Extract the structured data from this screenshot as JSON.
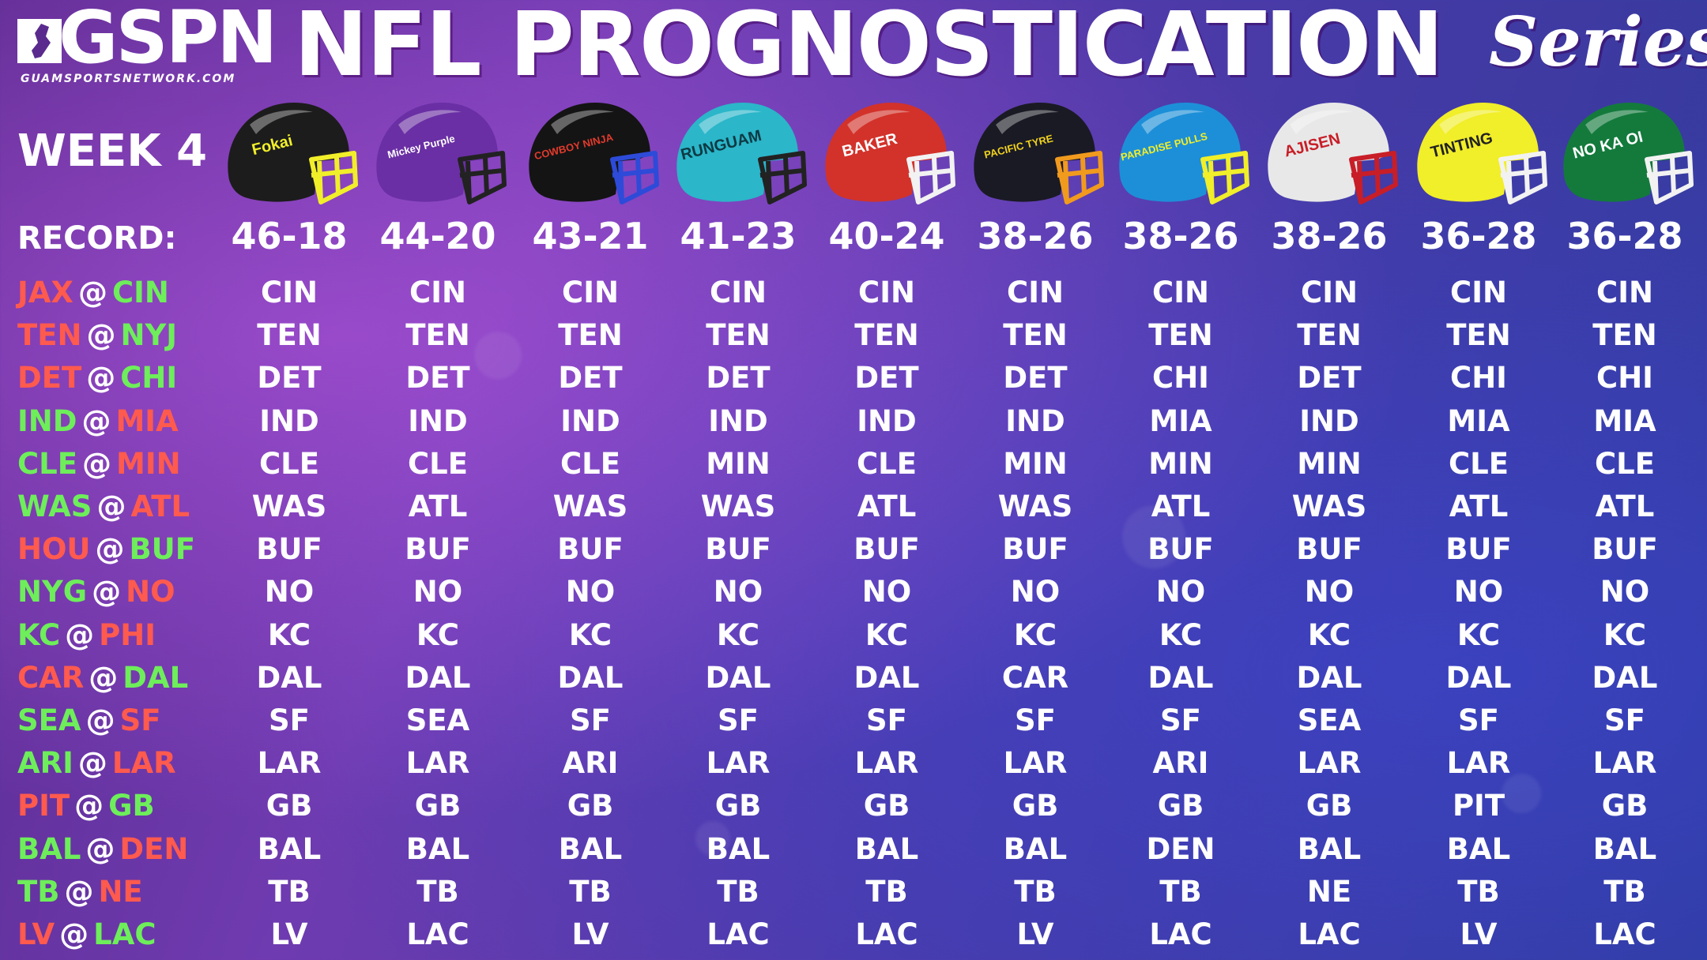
{
  "header": {
    "logo_text": "GSPN",
    "logo_url": "GUAMSPORTSNETWORK.COM",
    "title": "NFL PROGNOSTICATION",
    "series": "Series"
  },
  "week_label": "WEEK 4",
  "record_label": "RECORD:",
  "colors": {
    "away_red": "#ff5a4e",
    "home_green": "#6dee5a"
  },
  "pickers": [
    {
      "helmet_text": "Fokai",
      "shell": "#1c1c1c",
      "mask": "#f1ee2a",
      "logo_color": "#f1ee2a",
      "record": "46-18"
    },
    {
      "helmet_text": "Mickey Purple",
      "shell": "#6a2fa4",
      "mask": "#222222",
      "logo_color": "#ffffff",
      "record": "44-20"
    },
    {
      "helmet_text": "COWBOY NINJA",
      "shell": "#141414",
      "mask": "#2d4bd8",
      "logo_color": "#e23a2c",
      "record": "43-21"
    },
    {
      "helmet_text": "RUNGUAM",
      "shell": "#2bb6c9",
      "mask": "#222222",
      "logo_color": "#0d3a44",
      "record": "41-23"
    },
    {
      "helmet_text": "BAKER",
      "shell": "#d2322a",
      "mask": "#f2f2f2",
      "logo_color": "#ffffff",
      "record": "40-24"
    },
    {
      "helmet_text": "PACIFIC TYRE",
      "shell": "#1a1a24",
      "mask": "#f09a1e",
      "logo_color": "#f0d21e",
      "record": "38-26"
    },
    {
      "helmet_text": "PARADISE PULLS",
      "shell": "#1d8fd8",
      "mask": "#f1ee2a",
      "logo_color": "#f1ee2a",
      "record": "38-26"
    },
    {
      "helmet_text": "AJISEN",
      "shell": "#e8e8e8",
      "mask": "#c81e28",
      "logo_color": "#c81e28",
      "record": "38-26"
    },
    {
      "helmet_text": "TINTING",
      "shell": "#f1ee2a",
      "mask": "#f2f2f2",
      "logo_color": "#222222",
      "record": "36-28"
    },
    {
      "helmet_text": "NO KA OI",
      "shell": "#137a3c",
      "mask": "#f2f2f2",
      "logo_color": "#ffffff",
      "record": "36-28"
    }
  ],
  "games": [
    {
      "away": "JAX",
      "home": "CIN",
      "away_color": "red",
      "home_color": "green",
      "picks": [
        "CIN",
        "CIN",
        "CIN",
        "CIN",
        "CIN",
        "CIN",
        "CIN",
        "CIN",
        "CIN",
        "CIN"
      ]
    },
    {
      "away": "TEN",
      "home": "NYJ",
      "away_color": "red",
      "home_color": "green",
      "picks": [
        "TEN",
        "TEN",
        "TEN",
        "TEN",
        "TEN",
        "TEN",
        "TEN",
        "TEN",
        "TEN",
        "TEN"
      ]
    },
    {
      "away": "DET",
      "home": "CHI",
      "away_color": "red",
      "home_color": "green",
      "picks": [
        "DET",
        "DET",
        "DET",
        "DET",
        "DET",
        "DET",
        "CHI",
        "DET",
        "CHI",
        "CHI"
      ]
    },
    {
      "away": "IND",
      "home": "MIA",
      "away_color": "green",
      "home_color": "red",
      "picks": [
        "IND",
        "IND",
        "IND",
        "IND",
        "IND",
        "IND",
        "MIA",
        "IND",
        "MIA",
        "MIA"
      ]
    },
    {
      "away": "CLE",
      "home": "MIN",
      "away_color": "green",
      "home_color": "red",
      "picks": [
        "CLE",
        "CLE",
        "CLE",
        "MIN",
        "CLE",
        "MIN",
        "MIN",
        "MIN",
        "CLE",
        "CLE"
      ]
    },
    {
      "away": "WAS",
      "home": "ATL",
      "away_color": "green",
      "home_color": "red",
      "picks": [
        "WAS",
        "ATL",
        "WAS",
        "WAS",
        "ATL",
        "WAS",
        "ATL",
        "WAS",
        "ATL",
        "ATL"
      ]
    },
    {
      "away": "HOU",
      "home": "BUF",
      "away_color": "red",
      "home_color": "green",
      "picks": [
        "BUF",
        "BUF",
        "BUF",
        "BUF",
        "BUF",
        "BUF",
        "BUF",
        "BUF",
        "BUF",
        "BUF"
      ]
    },
    {
      "away": "NYG",
      "home": "NO",
      "away_color": "green",
      "home_color": "red",
      "picks": [
        "NO",
        "NO",
        "NO",
        "NO",
        "NO",
        "NO",
        "NO",
        "NO",
        "NO",
        "NO"
      ]
    },
    {
      "away": "KC",
      "home": "PHI",
      "away_color": "green",
      "home_color": "red",
      "picks": [
        "KC",
        "KC",
        "KC",
        "KC",
        "KC",
        "KC",
        "KC",
        "KC",
        "KC",
        "KC"
      ]
    },
    {
      "away": "CAR",
      "home": "DAL",
      "away_color": "red",
      "home_color": "green",
      "picks": [
        "DAL",
        "DAL",
        "DAL",
        "DAL",
        "DAL",
        "CAR",
        "DAL",
        "DAL",
        "DAL",
        "DAL"
      ]
    },
    {
      "away": "SEA",
      "home": "SF",
      "away_color": "green",
      "home_color": "red",
      "picks": [
        "SF",
        "SEA",
        "SF",
        "SF",
        "SF",
        "SF",
        "SF",
        "SEA",
        "SF",
        "SF"
      ]
    },
    {
      "away": "ARI",
      "home": "LAR",
      "away_color": "green",
      "home_color": "red",
      "picks": [
        "LAR",
        "LAR",
        "ARI",
        "LAR",
        "LAR",
        "LAR",
        "ARI",
        "LAR",
        "LAR",
        "LAR"
      ]
    },
    {
      "away": "PIT",
      "home": "GB",
      "away_color": "red",
      "home_color": "green",
      "picks": [
        "GB",
        "GB",
        "GB",
        "GB",
        "GB",
        "GB",
        "GB",
        "GB",
        "PIT",
        "GB"
      ]
    },
    {
      "away": "BAL",
      "home": "DEN",
      "away_color": "green",
      "home_color": "red",
      "picks": [
        "BAL",
        "BAL",
        "BAL",
        "BAL",
        "BAL",
        "BAL",
        "DEN",
        "BAL",
        "BAL",
        "BAL"
      ]
    },
    {
      "away": "TB",
      "home": "NE",
      "away_color": "green",
      "home_color": "red",
      "picks": [
        "TB",
        "TB",
        "TB",
        "TB",
        "TB",
        "TB",
        "TB",
        "NE",
        "TB",
        "TB"
      ]
    },
    {
      "away": "LV",
      "home": "LAC",
      "away_color": "red",
      "home_color": "green",
      "picks": [
        "LV",
        "LAC",
        "LV",
        "LAC",
        "LAC",
        "LV",
        "LAC",
        "LAC",
        "LV",
        "LAC"
      ]
    }
  ]
}
